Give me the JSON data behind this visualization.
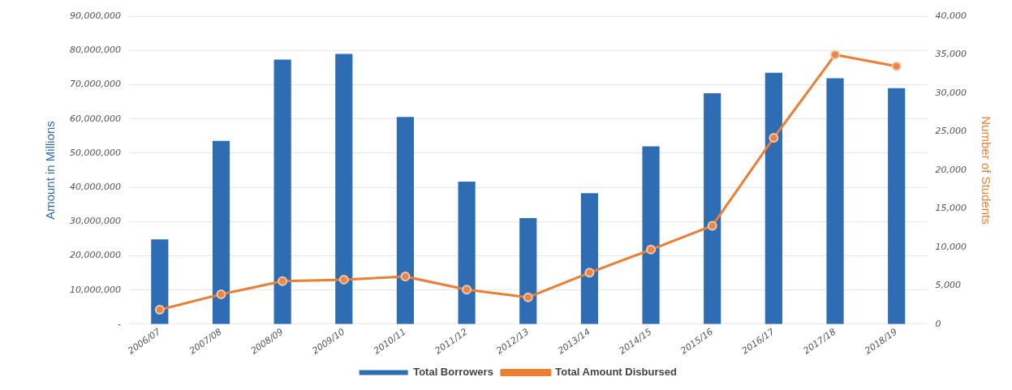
{
  "chart_data": {
    "type": "bar",
    "categories": [
      "2006/07",
      "2007/08",
      "2008/09",
      "2009/10",
      "2010/11",
      "2011/12",
      "2012/13",
      "2013/14",
      "2014/15",
      "2015/16",
      "2016/17",
      "2017/18",
      "2018/19"
    ],
    "series": [
      {
        "name": "Total Borrowers",
        "color": "#2e6db4",
        "values": [
          24800000,
          53600000,
          77300000,
          79000000,
          60600000,
          41700000,
          31000000,
          38300000,
          52000000,
          67500000,
          73500000,
          71900000,
          69000000
        ]
      },
      {
        "name": "Total Amount Disbursed",
        "type": "line",
        "axis": "y2",
        "color": "#ed7d31",
        "values": [
          1900,
          3900,
          5600,
          5800,
          6200,
          4500,
          3500,
          6700,
          9700,
          12800,
          24200,
          35000,
          33500
        ]
      }
    ],
    "ylabel": "Amount in Millions",
    "y2label": "Number of Students",
    "ylim": [
      0,
      90000000
    ],
    "yticks": [
      {
        "value": 0,
        "label": "-"
      },
      {
        "value": 10000000,
        "label": "10,000,000"
      },
      {
        "value": 20000000,
        "label": "20,000,000"
      },
      {
        "value": 30000000,
        "label": "30,000,000"
      },
      {
        "value": 40000000,
        "label": "40,000,000"
      },
      {
        "value": 50000000,
        "label": "50,000,000"
      },
      {
        "value": 60000000,
        "label": "60,000,000"
      },
      {
        "value": 70000000,
        "label": "70,000,000"
      },
      {
        "value": 80000000,
        "label": "80,000,000"
      },
      {
        "value": 90000000,
        "label": "90,000,000"
      }
    ],
    "y2lim": [
      0,
      40000
    ],
    "y2ticks": [
      {
        "value": 0,
        "label": "0"
      },
      {
        "value": 5000,
        "label": "5,000"
      },
      {
        "value": 10000,
        "label": "10,000"
      },
      {
        "value": 15000,
        "label": "15,000"
      },
      {
        "value": 20000,
        "label": "20,000"
      },
      {
        "value": 25000,
        "label": "25,000"
      },
      {
        "value": 30000,
        "label": "30,000"
      },
      {
        "value": 35000,
        "label": "35,000"
      },
      {
        "value": 40000,
        "label": "40,000"
      }
    ],
    "grid": "y",
    "legend": "bottom",
    "marker": "circle"
  }
}
